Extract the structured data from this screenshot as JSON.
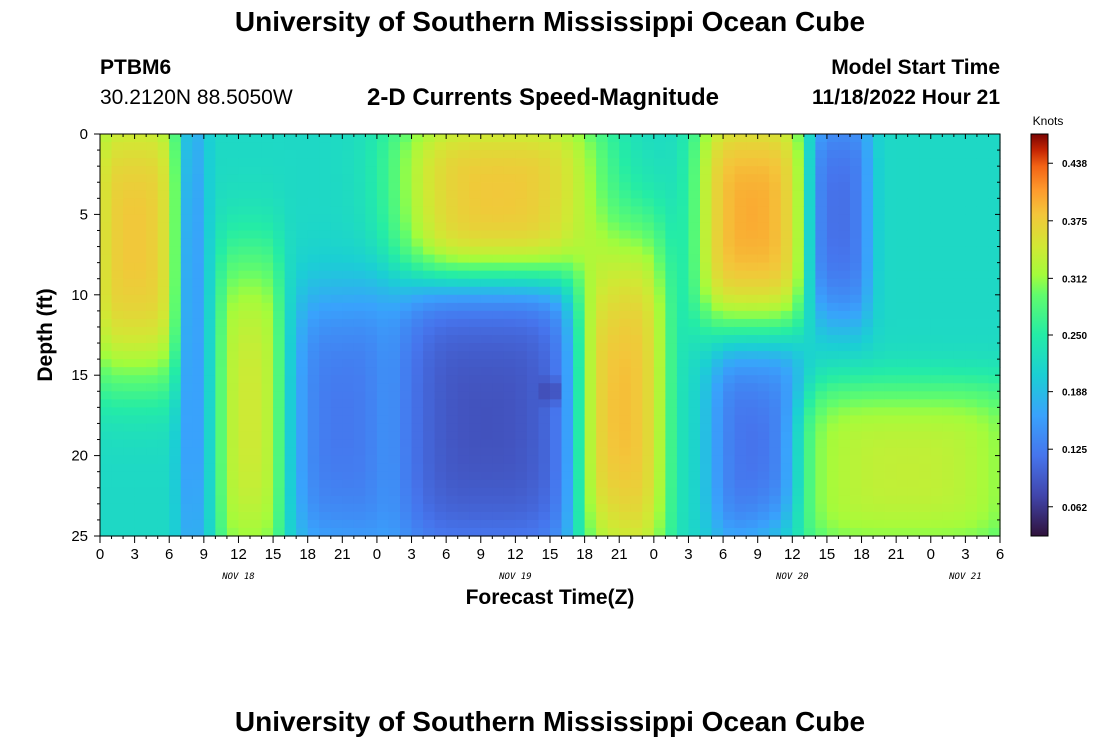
{
  "header": {
    "title": "University of Southern Mississippi Ocean Cube",
    "station_id": "PTBM6",
    "station_coords": "30.2120N  88.5050W",
    "product": "2-D Currents Speed-Magnitude",
    "model_start_label": "Model Start Time",
    "model_start_value": "11/18/2022 Hour 21"
  },
  "footer": {
    "title": "University of Southern Mississippi Ocean Cube"
  },
  "chart_data": {
    "type": "heatmap",
    "title": "2-D Currents Speed-Magnitude",
    "xlabel": "Forecast Time(Z)",
    "ylabel": "Depth (ft)",
    "x_ticks": [
      "0",
      "3",
      "6",
      "9",
      "12",
      "15",
      "18",
      "21",
      "0",
      "3",
      "6",
      "9",
      "12",
      "15",
      "18",
      "21",
      "0",
      "3",
      "6",
      "9",
      "12",
      "15",
      "18",
      "21",
      "0",
      "3",
      "6"
    ],
    "x_day_labels": [
      {
        "label": "NOV 18",
        "hour": 12
      },
      {
        "label": "NOV 19",
        "hour": 36
      },
      {
        "label": "NOV 20",
        "hour": 60
      },
      {
        "label": "NOV 21",
        "hour": 75
      }
    ],
    "x_range_hours": [
      0,
      78
    ],
    "y_ticks": [
      "0",
      "5",
      "10",
      "15",
      "20",
      "25"
    ],
    "y_range": [
      0,
      25
    ],
    "y_inverted": true,
    "colorbar": {
      "title": "Knots",
      "ticks": [
        "0.438",
        "0.375",
        "0.312",
        "0.250",
        "0.188",
        "0.125",
        "0.062"
      ],
      "range": [
        0.03,
        0.47
      ]
    },
    "speed_features_knots": [
      {
        "hours": [
          0,
          6
        ],
        "depth_ft": [
          0,
          13
        ],
        "speed": 0.4
      },
      {
        "hours": [
          7,
          9
        ],
        "depth_ft": [
          0,
          25
        ],
        "speed": 0.15
      },
      {
        "hours": [
          11,
          15
        ],
        "depth_ft": [
          10,
          25
        ],
        "speed": 0.36
      },
      {
        "hours": [
          18,
          24
        ],
        "depth_ft": [
          12,
          24
        ],
        "speed": 0.11
      },
      {
        "hours": [
          27,
          40
        ],
        "depth_ft": [
          11,
          25
        ],
        "speed": 0.07
      },
      {
        "hours": 39,
        "depth_ft": 16,
        "speed": 0.04
      },
      {
        "hours": [
          28,
          41
        ],
        "depth_ft": [
          0,
          8
        ],
        "speed": 0.4
      },
      {
        "hours": [
          42,
          48
        ],
        "depth_ft": [
          9,
          25
        ],
        "speed": 0.41
      },
      {
        "hours": [
          53,
          60
        ],
        "depth_ft": [
          0,
          10
        ],
        "speed": 0.42
      },
      {
        "hours": [
          62,
          66
        ],
        "depth_ft": [
          0,
          10
        ],
        "speed": 0.1
      },
      {
        "hours": [
          54,
          60
        ],
        "depth_ft": [
          15,
          24
        ],
        "speed": 0.1
      },
      {
        "hours": [
          62,
          78
        ],
        "depth_ft": [
          17,
          25
        ],
        "speed": 0.35
      }
    ]
  }
}
